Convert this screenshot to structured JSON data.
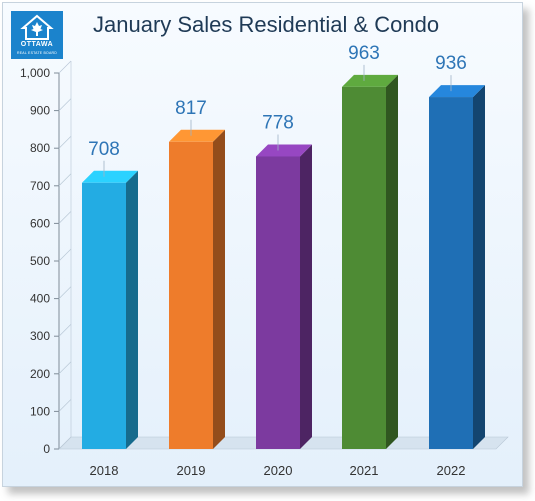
{
  "logo": {
    "word": "OTTAWA",
    "sub": "REAL ESTATE BOARD"
  },
  "colors": {
    "bar_2018": "#23ace3",
    "bar_2019": "#ee7c2b",
    "bar_2020": "#7c3a9f",
    "bar_2021": "#4e8b34",
    "bar_2022": "#1f6fb5",
    "label": "#2e75b6"
  },
  "chart_data": {
    "type": "bar",
    "title": "January Sales Residential & Condo",
    "categories": [
      "2018",
      "2019",
      "2020",
      "2021",
      "2022"
    ],
    "values": [
      708,
      817,
      778,
      963,
      936
    ],
    "data_labels": [
      "708",
      "817",
      "778",
      "963",
      "936"
    ],
    "ylim": [
      0,
      1000
    ],
    "yticks": [
      0,
      100,
      200,
      300,
      400,
      500,
      600,
      700,
      800,
      900,
      1000
    ],
    "ytick_labels": [
      "0",
      "100",
      "200",
      "300",
      "400",
      "500",
      "600",
      "700",
      "800",
      "900",
      "1,000"
    ],
    "xlabel": "",
    "ylabel": "",
    "grid": false,
    "legend": "none",
    "style": "3d-column"
  }
}
